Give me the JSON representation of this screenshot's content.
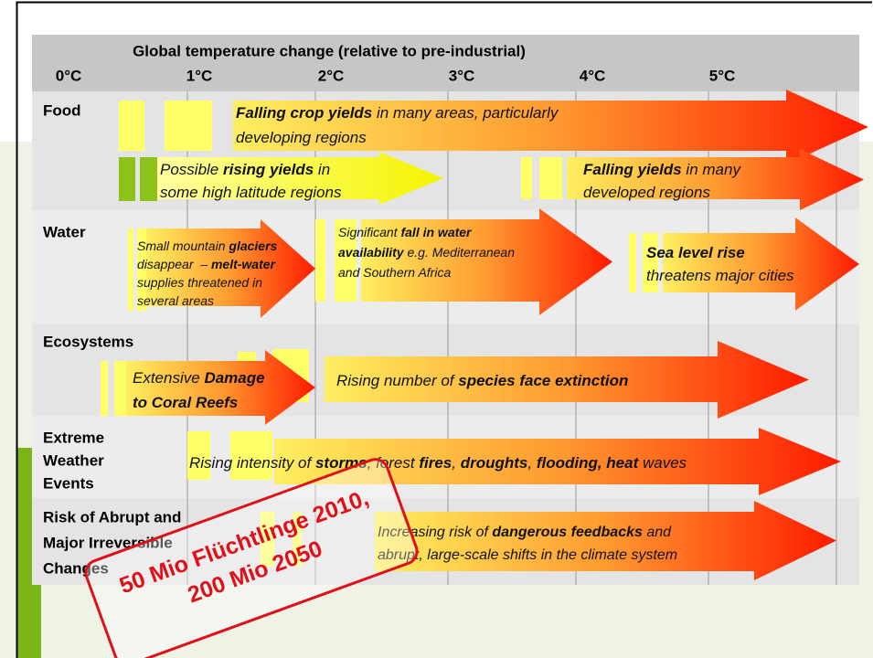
{
  "header": {
    "title": "Global temperature change (relative to pre-industrial)",
    "temperatures": [
      "0°C",
      "1°C",
      "2°C",
      "3°C",
      "4°C",
      "5°C"
    ]
  },
  "rows": [
    {
      "label": [
        "Food"
      ],
      "arrows": [
        {
          "lines": [
            [
              "Falling crop yields",
              " in many areas, particularly"
            ],
            [
              "developing regions"
            ]
          ]
        },
        {
          "lines": [
            [
              "Possible ",
              "rising yields",
              " in"
            ],
            [
              "some high latitude regions"
            ]
          ]
        },
        {
          "lines": [
            [
              "Falling yields",
              " in many"
            ],
            [
              "developed regions"
            ]
          ]
        }
      ]
    },
    {
      "label": [
        "Water"
      ],
      "arrows": [
        {
          "lines": [
            [
              "Small mountain ",
              "glaciers"
            ],
            [
              "disappear  – ",
              "melt-water"
            ],
            [
              "supplies threatened in"
            ],
            [
              "several areas"
            ]
          ]
        },
        {
          "lines": [
            [
              "Significant ",
              "fall in water"
            ],
            [
              "availability",
              " e.g. Mediterranean"
            ],
            [
              "and Southern Africa"
            ]
          ]
        },
        {
          "lines": [
            [
              "Sea level rise"
            ],
            [
              "threatens major cities"
            ]
          ]
        }
      ]
    },
    {
      "label": [
        "Ecosystems"
      ],
      "arrows": [
        {
          "lines": [
            [
              "Extensive ",
              "Damage"
            ],
            [
              "to Coral Reefs"
            ]
          ]
        },
        {
          "lines": [
            [
              "Rising number of ",
              "species face extinction"
            ]
          ]
        }
      ]
    },
    {
      "label": [
        "Extreme",
        "Weather",
        "Events"
      ],
      "arrows": [
        {
          "lines": [
            [
              "Rising intensity of ",
              "storms",
              ", forest ",
              "fires",
              ", ",
              "droughts",
              ", ",
              "flooding, heat",
              " waves"
            ]
          ]
        }
      ]
    },
    {
      "label": [
        "Risk of Abrupt and",
        "Major Irreversible",
        "Changes"
      ],
      "arrows": [
        {
          "lines": [
            [
              "Increasing risk of ",
              "dangerous feedbacks",
              " and"
            ],
            [
              "abrupt, large-scale shifts in the climate system"
            ]
          ]
        }
      ]
    }
  ],
  "stamp": {
    "lines": [
      "50 Mio Flüchtlinge 2010,",
      "200 Mio 2050"
    ]
  }
}
